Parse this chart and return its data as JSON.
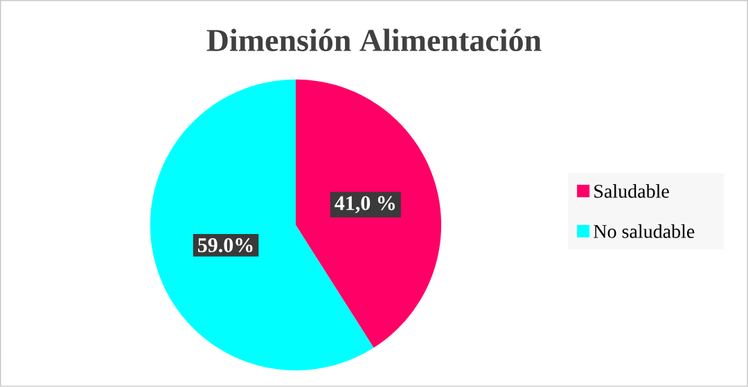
{
  "chart_data": {
    "type": "pie",
    "title": "Dimensión Alimentación",
    "categories": [
      "Saludable",
      "No saludable"
    ],
    "values": [
      41.0,
      59.0
    ],
    "colors": [
      "#ff0066",
      "#00ffff"
    ],
    "value_labels": [
      "41,0 %",
      "59.0%"
    ],
    "legend": "right"
  }
}
